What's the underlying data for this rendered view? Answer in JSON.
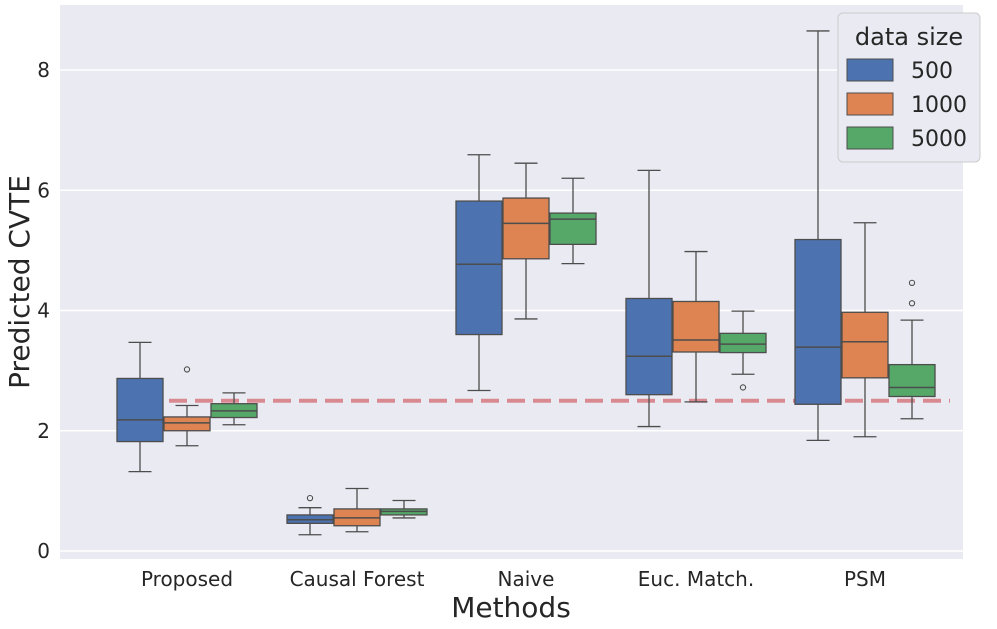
{
  "chart_data": {
    "type": "box",
    "xlabel": "Methods",
    "ylabel": "Predicted CVTE",
    "ylim": [
      -0.15,
      9.05
    ],
    "yticks": [
      0,
      2,
      4,
      6,
      8
    ],
    "ytick_labels": [
      "0",
      "2",
      "4",
      "6",
      "8"
    ],
    "grid": true,
    "categories": [
      "Proposed",
      "Causal Forest",
      "Naive",
      "Euc. Match.",
      "PSM"
    ],
    "legend": {
      "title": "data size",
      "position": "top-right"
    },
    "reference_line": {
      "value": 2.5,
      "style": "dashed",
      "color": "#d98a91"
    },
    "series": [
      {
        "name": "500",
        "color": "#4c72b0",
        "boxes": [
          {
            "min": 1.32,
            "q1": 1.82,
            "median": 2.18,
            "q3": 2.87,
            "max": 3.47,
            "outliers": []
          },
          {
            "min": 0.27,
            "q1": 0.46,
            "median": 0.52,
            "q3": 0.6,
            "max": 0.72,
            "outliers": [
              0.88
            ]
          },
          {
            "min": 2.67,
            "q1": 3.6,
            "median": 4.77,
            "q3": 5.82,
            "max": 6.59,
            "outliers": []
          },
          {
            "min": 2.07,
            "q1": 2.6,
            "median": 3.24,
            "q3": 4.2,
            "max": 6.33,
            "outliers": []
          },
          {
            "min": 1.84,
            "q1": 2.44,
            "median": 3.39,
            "q3": 5.18,
            "max": 8.65,
            "outliers": []
          }
        ]
      },
      {
        "name": "1000",
        "color": "#dd8452",
        "boxes": [
          {
            "min": 1.75,
            "q1": 2.0,
            "median": 2.13,
            "q3": 2.23,
            "max": 2.42,
            "outliers": [
              3.02
            ]
          },
          {
            "min": 0.32,
            "q1": 0.42,
            "median": 0.55,
            "q3": 0.7,
            "max": 1.04,
            "outliers": []
          },
          {
            "min": 3.86,
            "q1": 4.86,
            "median": 5.45,
            "q3": 5.87,
            "max": 6.45,
            "outliers": []
          },
          {
            "min": 2.48,
            "q1": 3.31,
            "median": 3.51,
            "q3": 4.15,
            "max": 4.98,
            "outliers": []
          },
          {
            "min": 1.9,
            "q1": 2.88,
            "median": 3.48,
            "q3": 3.97,
            "max": 5.46,
            "outliers": []
          }
        ]
      },
      {
        "name": "5000",
        "color": "#55a868",
        "boxes": [
          {
            "min": 2.1,
            "q1": 2.22,
            "median": 2.33,
            "q3": 2.45,
            "max": 2.63,
            "outliers": []
          },
          {
            "min": 0.55,
            "q1": 0.6,
            "median": 0.66,
            "q3": 0.7,
            "max": 0.84,
            "outliers": []
          },
          {
            "min": 4.78,
            "q1": 5.1,
            "median": 5.52,
            "q3": 5.62,
            "max": 6.2,
            "outliers": []
          },
          {
            "min": 2.94,
            "q1": 3.3,
            "median": 3.44,
            "q3": 3.62,
            "max": 3.99,
            "outliers": [
              2.72
            ]
          },
          {
            "min": 2.2,
            "q1": 2.57,
            "median": 2.72,
            "q3": 3.1,
            "max": 3.84,
            "outliers": [
              4.12,
              4.46
            ]
          }
        ]
      }
    ]
  }
}
